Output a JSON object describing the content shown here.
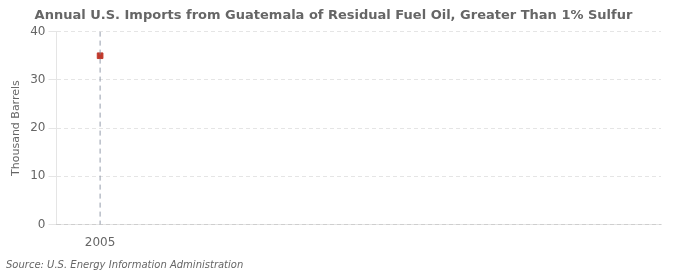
{
  "chart_data": {
    "type": "scatter",
    "title": "Annual U.S. Imports from Guatemala of Residual Fuel Oil, Greater Than 1% Sulfur",
    "ylabel": "Thousand Barrels",
    "source": "Source: U.S. Energy Information Administration",
    "x": [
      2005
    ],
    "values": [
      35
    ],
    "color": "#c0392b",
    "marker": "square",
    "vlines": [
      2005
    ],
    "xlim": [
      2004.3,
      2014
    ],
    "xticks": [
      2005
    ],
    "ylim": [
      0,
      40
    ],
    "yticks": [
      0,
      10,
      20,
      30,
      40
    ],
    "grid": "y"
  }
}
